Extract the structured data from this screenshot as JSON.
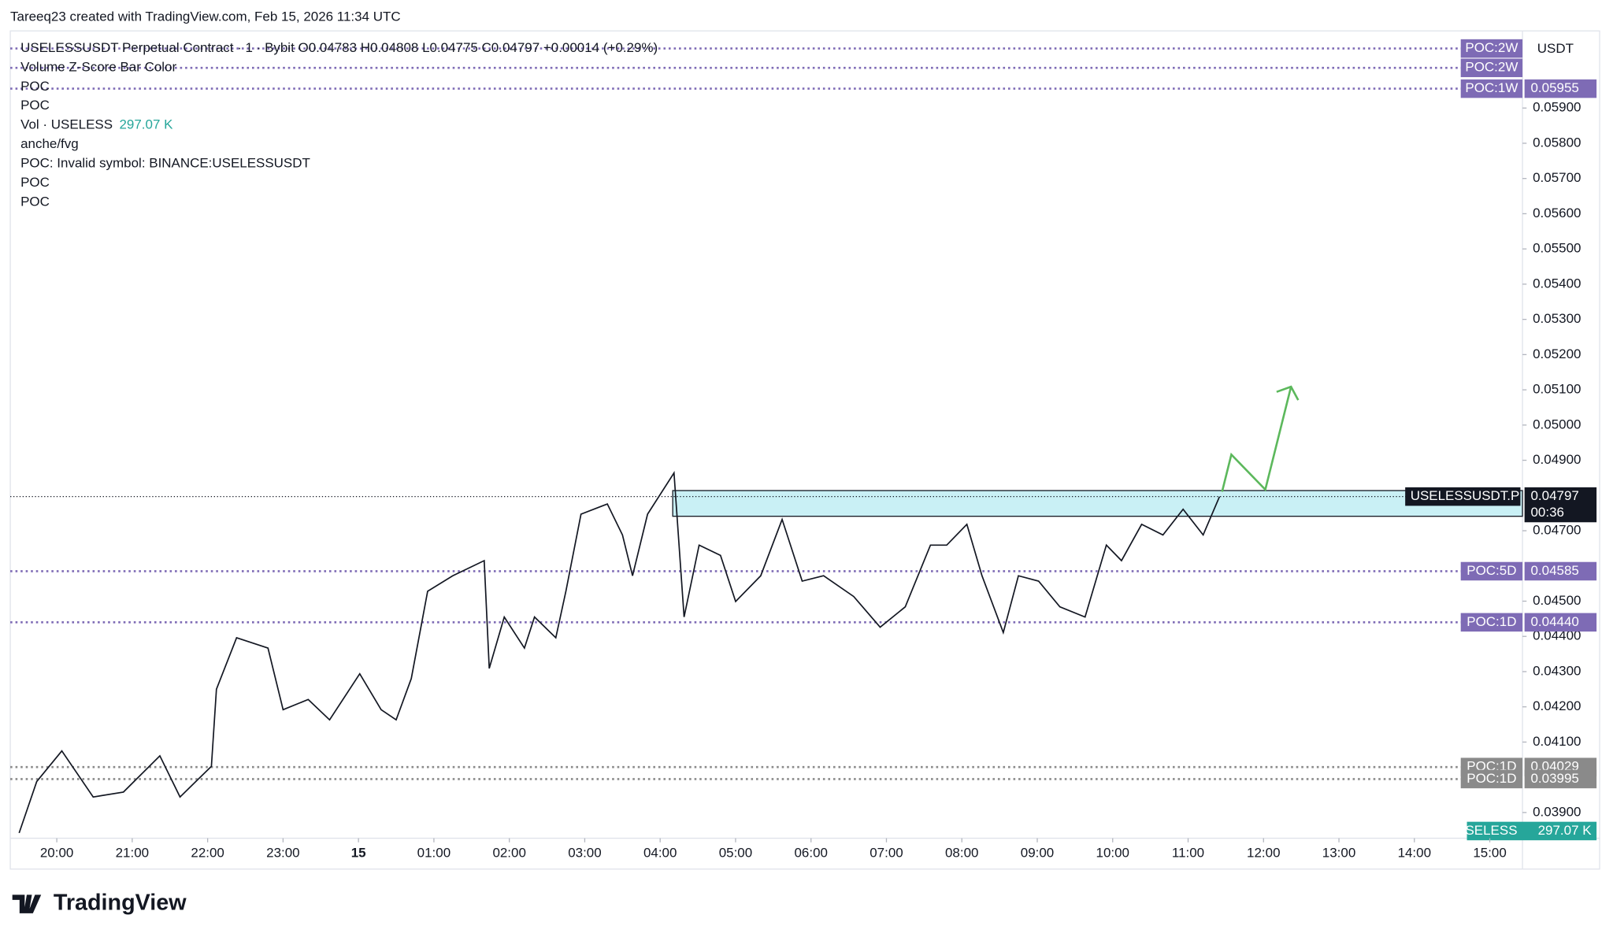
{
  "header": "Tareeq23 created with TradingView.com, Feb 15, 2026 11:34 UTC",
  "legend": [
    "USELESSUSDT Perpetual Contract · 1 · Bybit  O0.04783  H0.04808  L0.04775  C0.04797  +0.00014 (+0.29%)",
    "Volume Z-Score Bar Color",
    "POC",
    "POC",
    "Vol · USELESS",
    "anche/fvg",
    "POC: Invalid symbol: BINANCE:USELESSUSDT",
    "POC",
    "POC"
  ],
  "volume_value": "297.07 K",
  "axis_unit": "USDT",
  "brand": "TradingView",
  "chart_data": {
    "type": "line",
    "series": [
      {
        "name": "USELESSUSDT.P",
        "color": "#131722",
        "x": [
          "19:30",
          "19:44",
          "20:04",
          "20:29",
          "20:53",
          "21:22",
          "21:38",
          "22:03",
          "22:07",
          "22:23",
          "22:48",
          "23:00",
          "23:20",
          "23:37",
          "00:01",
          "00:18",
          "00:30",
          "00:42",
          "00:55",
          "01:15",
          "01:40",
          "01:44",
          "01:56",
          "02:12",
          "02:20",
          "02:37",
          "02:45",
          "02:57",
          "03:18",
          "03:30",
          "03:38",
          "03:50",
          "04:11",
          "04:19",
          "04:31",
          "04:48",
          "05:00",
          "05:20",
          "05:37",
          "05:53",
          "06:10",
          "06:34",
          "06:55",
          "07:15",
          "07:35",
          "07:48",
          "08:04",
          "08:16",
          "08:33",
          "08:45",
          "09:01",
          "09:18",
          "09:38",
          "09:55",
          "10:07",
          "10:23",
          "10:40",
          "10:56",
          "11:12",
          "11:25"
        ],
        "values": [
          0.03842,
          0.03988,
          0.04075,
          0.03944,
          0.03958,
          0.04061,
          0.03944,
          0.04031,
          0.0425,
          0.04396,
          0.04367,
          0.04192,
          0.04221,
          0.04163,
          0.04294,
          0.04192,
          0.04163,
          0.0428,
          0.04528,
          0.04572,
          0.04615,
          0.04309,
          0.04455,
          0.04367,
          0.04455,
          0.04396,
          0.04528,
          0.04747,
          0.04776,
          0.04688,
          0.04572,
          0.04747,
          0.04864,
          0.04455,
          0.04659,
          0.0463,
          0.04499,
          0.04572,
          0.04732,
          0.04557,
          0.04572,
          0.04513,
          0.04426,
          0.04484,
          0.04659,
          0.04659,
          0.04718,
          0.04572,
          0.04411,
          0.04572,
          0.04557,
          0.04484,
          0.04455,
          0.04659,
          0.04615,
          0.04718,
          0.04688,
          0.04761,
          0.04688,
          0.04797
        ]
      }
    ],
    "xlim": [
      "19:23",
      "15:26"
    ],
    "xticks": [
      "20:00",
      "21:00",
      "22:00",
      "23:00",
      {
        "value": "00:00",
        "label": "15"
      },
      "01:00",
      "02:00",
      "03:00",
      "04:00",
      "05:00",
      "06:00",
      "07:00",
      "08:00",
      "09:00",
      "10:00",
      "11:00",
      "12:00",
      "13:00",
      "14:00",
      "15:00"
    ],
    "ylim": [
      0.03827,
      0.06119
    ],
    "yticks": [
      {
        "value": 0.039,
        "label": "0.03900"
      },
      {
        "value": 0.041,
        "label": "0.04100"
      },
      {
        "value": 0.042,
        "label": "0.04200"
      },
      {
        "value": 0.043,
        "label": "0.04300"
      },
      {
        "value": 0.044,
        "label": "0.04400"
      },
      {
        "value": 0.045,
        "label": "0.04500"
      },
      {
        "value": 0.047,
        "label": "0.04700"
      },
      {
        "value": 0.049,
        "label": "0.04900"
      },
      {
        "value": 0.05,
        "label": "0.05000"
      },
      {
        "value": 0.051,
        "label": "0.05100"
      },
      {
        "value": 0.052,
        "label": "0.05200"
      },
      {
        "value": 0.053,
        "label": "0.05300"
      },
      {
        "value": 0.054,
        "label": "0.05400"
      },
      {
        "value": 0.055,
        "label": "0.05500"
      },
      {
        "value": 0.056,
        "label": "0.05600"
      },
      {
        "value": 0.057,
        "label": "0.05700"
      },
      {
        "value": 0.058,
        "label": "0.05800"
      },
      {
        "value": 0.059,
        "label": "0.05900"
      }
    ],
    "levels": [
      {
        "name": "POC:2W",
        "value": 0.06069,
        "color": "#7e6bb5"
      },
      {
        "name": "POC:2W",
        "value": 0.06014,
        "color": "#7e6bb5"
      },
      {
        "name": "POC:1W",
        "value": 0.05955,
        "label": "0.05955",
        "color": "#7e6bb5"
      },
      {
        "name": "POC:5D",
        "value": 0.04585,
        "label": "0.04585",
        "color": "#7e6bb5"
      },
      {
        "name": "POC:1D",
        "value": 0.0444,
        "label": "0.04440",
        "color": "#7e6bb5"
      },
      {
        "name": "POC:1D",
        "value": 0.04029,
        "label": "0.04029",
        "color": "#8a8a8a"
      },
      {
        "name": "POC:1D",
        "value": 0.03995,
        "label": "0.03995",
        "color": "#8a8a8a"
      }
    ],
    "zone": {
      "start": "04:10",
      "top": 0.04814,
      "bottom": 0.04741,
      "color": "#c9f0f5"
    },
    "last": {
      "value": 0.04797,
      "label": "0.04797",
      "countdown": "00:36"
    }
  }
}
